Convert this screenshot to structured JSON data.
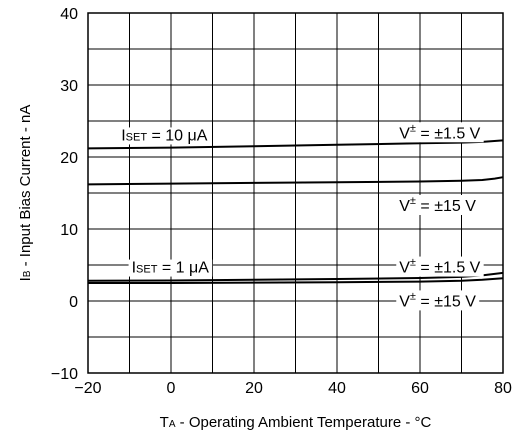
{
  "chart_data": {
    "type": "line",
    "xlabel": {
      "main": "T",
      "sub": "A",
      "rest": " - Operating Ambient Temperature - °C"
    },
    "ylabel": {
      "main": "I",
      "sub": "B",
      "rest": " - Input Bias Current - nA"
    },
    "xlim": [
      -20,
      80
    ],
    "ylim": [
      -10,
      40
    ],
    "x_ticks": [
      "-20",
      "0",
      "20",
      "40",
      "60",
      "80"
    ],
    "y_ticks": [
      "-10",
      "0",
      "10",
      "20",
      "30",
      "40"
    ],
    "grid": true,
    "series": [
      {
        "x": [
          -20,
          0,
          20,
          40,
          60,
          70,
          75,
          80
        ],
        "y": [
          21.2,
          21.3,
          21.5,
          21.7,
          21.9,
          22.0,
          22.1,
          22.3
        ]
      },
      {
        "x": [
          -20,
          0,
          20,
          40,
          60,
          70,
          75,
          78,
          80
        ],
        "y": [
          16.2,
          16.3,
          16.4,
          16.5,
          16.6,
          16.7,
          16.8,
          17.0,
          17.2
        ]
      },
      {
        "x": [
          -20,
          0,
          20,
          40,
          60,
          70,
          75,
          80
        ],
        "y": [
          2.8,
          2.85,
          2.95,
          3.05,
          3.2,
          3.35,
          3.55,
          3.9
        ]
      },
      {
        "x": [
          -20,
          0,
          20,
          40,
          60,
          70,
          75,
          80
        ],
        "y": [
          2.5,
          2.5,
          2.55,
          2.6,
          2.7,
          2.8,
          2.95,
          3.15
        ]
      }
    ],
    "annotations": [
      {
        "id": "iset10",
        "main": "I",
        "sub": "SET",
        "rest": " = 10 μA",
        "x": -12,
        "y": 22.3
      },
      {
        "id": "iset1",
        "main": "I",
        "sub": "SET",
        "rest": " = 1 μA",
        "x": -9.5,
        "y": 3.95
      },
      {
        "id": "v15a",
        "main": "V",
        "sup": "±",
        "rest": " = ±1.5 V",
        "x": 55,
        "y": 22.6
      },
      {
        "id": "v15b",
        "main": "V",
        "sup": "±",
        "rest": " = ±15 V",
        "x": 55,
        "y": 12.5
      },
      {
        "id": "v15c",
        "main": "V",
        "sup": "±",
        "rest": " = ±1.5 V",
        "x": 55,
        "y": 3.95
      },
      {
        "id": "v15d",
        "main": "V",
        "sup": "±",
        "rest": " = ±15 V",
        "x": 55,
        "y": -0.75
      }
    ]
  }
}
